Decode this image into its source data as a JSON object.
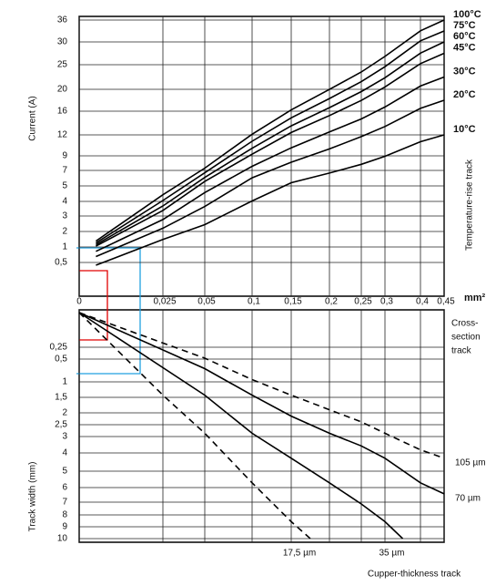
{
  "chart_data": [
    {
      "type": "line",
      "y_label": "Current (A)",
      "right_label": "Temperature-rise track",
      "x_unit": "mm²",
      "xlim": [
        0,
        0.45
      ],
      "xticks": [
        0,
        {
          "value": 0.025,
          "label": "0,025"
        },
        {
          "value": 0.05,
          "label": "0,05"
        },
        {
          "value": 0.1,
          "label": "0,1"
        },
        {
          "value": 0.15,
          "label": "0,15"
        },
        {
          "value": 0.2,
          "label": "0,2"
        },
        {
          "value": 0.25,
          "label": "0,25"
        },
        {
          "value": 0.3,
          "label": "0,3"
        },
        {
          "value": 0.4,
          "label": "0,4"
        },
        {
          "value": 0.45,
          "label": "0,45"
        }
      ],
      "ylim": [
        0,
        36
      ],
      "yticks": [
        {
          "value": 0.5,
          "label": "0,5"
        },
        1,
        2,
        3,
        4,
        5,
        7,
        9,
        12,
        16,
        20,
        25,
        30,
        36
      ],
      "grid": true,
      "x": [
        0.005,
        0.025,
        0.05,
        0.1,
        0.15,
        0.2,
        0.25,
        0.3,
        0.4,
        0.45
      ],
      "series": [
        {
          "name": "100°C",
          "color": "#000000",
          "values": [
            1.38,
            4.43,
            7.31,
            12.1,
            16.24,
            19.98,
            23.51,
            26.82,
            33.05,
            36
          ]
        },
        {
          "name": "75°C",
          "color": "#000000",
          "values": [
            1.26,
            4.06,
            6.7,
            11.09,
            14.88,
            18.32,
            21.55,
            24.59,
            30.29,
            33
          ]
        },
        {
          "name": "60°C",
          "color": "#000000",
          "values": [
            1.15,
            3.69,
            6.09,
            10.08,
            13.53,
            16.65,
            19.59,
            22.35,
            27.54,
            30
          ]
        },
        {
          "name": "45°C",
          "color": "#000000",
          "values": [
            1.05,
            3.38,
            5.58,
            9.24,
            12.4,
            15.26,
            17.96,
            20.49,
            25.25,
            27.5
          ]
        },
        {
          "name": "30°C",
          "color": "#000000",
          "values": [
            0.86,
            2.77,
            4.57,
            7.56,
            10.15,
            12.49,
            14.69,
            16.76,
            20.66,
            22.5
          ]
        },
        {
          "name": "20°C",
          "color": "#000000",
          "values": [
            0.69,
            2.21,
            3.65,
            6.05,
            8.12,
            9.99,
            11.75,
            13.41,
            16.52,
            18
          ]
        },
        {
          "name": "10°C",
          "color": "#000000",
          "values": [
            0.46,
            1.48,
            2.44,
            4.03,
            5.41,
            6.66,
            7.84,
            8.94,
            11.02,
            12
          ]
        }
      ]
    },
    {
      "type": "line",
      "y_label": "Track width (mm)",
      "right_label": [
        "Cross-",
        "section",
        "track"
      ],
      "x_label": "Cupper-thickness track",
      "xlim": [
        0,
        0.45
      ],
      "ylim": [
        0,
        10
      ],
      "yticks": [
        {
          "value": 0.25,
          "label": "0,25"
        },
        {
          "value": 0.5,
          "label": "0,5"
        },
        1,
        {
          "value": 1.5,
          "label": "1,5"
        },
        2,
        {
          "value": 2.5,
          "label": "2,5"
        },
        3,
        4,
        5,
        6,
        7,
        8,
        9,
        10
      ],
      "grid": true,
      "series": [
        {
          "name": "17,5 µm",
          "color": "#000000",
          "dashed": true,
          "x": [
            0,
            0.025,
            0.05,
            0.1,
            0.15,
            0.175
          ],
          "values": [
            0,
            1.43,
            2.86,
            5.71,
            8.57,
            10
          ]
        },
        {
          "name": "35 µm",
          "color": "#000000",
          "dashed": false,
          "x": [
            0,
            0.05,
            0.1,
            0.15,
            0.2,
            0.25,
            0.3,
            0.35
          ],
          "values": [
            0,
            1.43,
            2.86,
            4.29,
            5.71,
            7.14,
            8.57,
            10
          ]
        },
        {
          "name": "70 µm",
          "color": "#000000",
          "dashed": false,
          "x": [
            0,
            0.05,
            0.1,
            0.15,
            0.2,
            0.25,
            0.3,
            0.4,
            0.45
          ],
          "values": [
            0,
            0.71,
            1.43,
            2.14,
            2.86,
            3.57,
            4.29,
            5.71,
            6.43
          ]
        },
        {
          "name": "105 µm",
          "color": "#000000",
          "dashed": true,
          "x": [
            0,
            0.05,
            0.1,
            0.15,
            0.2,
            0.25,
            0.3,
            0.4,
            0.45
          ],
          "values": [
            0,
            0.48,
            0.95,
            1.43,
            1.9,
            2.38,
            2.86,
            3.81,
            4.29
          ]
        }
      ]
    }
  ]
}
